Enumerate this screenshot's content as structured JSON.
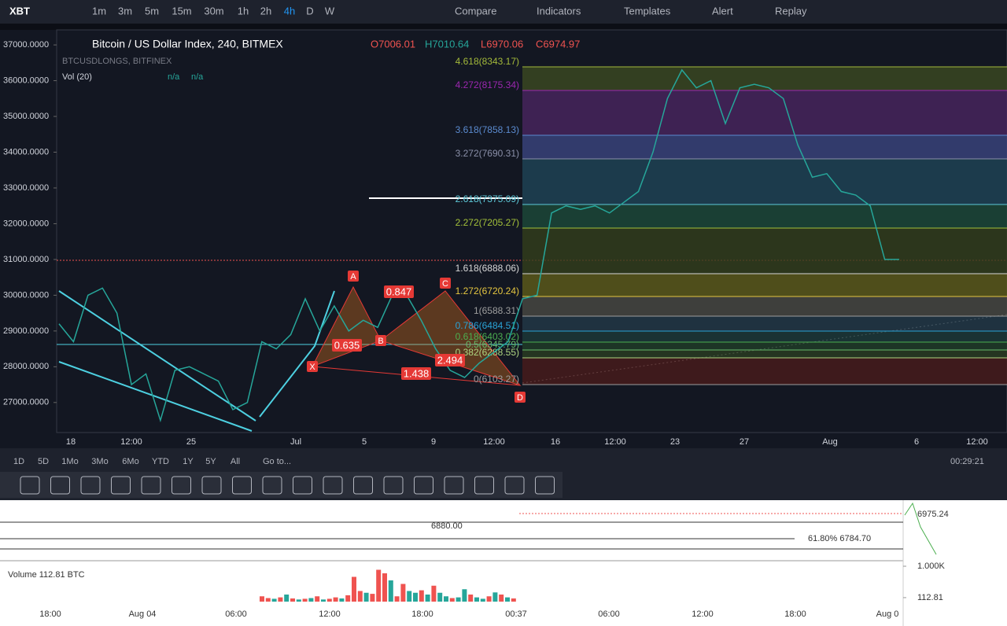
{
  "toolbar": {
    "symbol": "XBT",
    "intervals": [
      "1m",
      "3m",
      "5m",
      "15m",
      "30m",
      "1h",
      "2h",
      "4h",
      "D",
      "W"
    ],
    "buttons": [
      "Compare",
      "Indicators",
      "Templates",
      "Alert",
      "Replay"
    ]
  },
  "legend": {
    "title": "Bitcoin / US Dollar Index, 240, BITMEX",
    "ohlc": [
      "O7006.01",
      "H7010.64",
      "L6970.06",
      "C6974.97"
    ],
    "study1": "BTCUSDLONGS, BITFINEX",
    "study2": "Vol (20)",
    "study2_values": [
      "n/a",
      "n/a"
    ]
  },
  "chart_data": {
    "type": "line",
    "color": "#26a69a",
    "values": [
      29200,
      28700,
      30000,
      30200,
      29500,
      27500,
      27800,
      26500,
      27900,
      28000,
      27800,
      27600,
      26800,
      27000,
      28700,
      28500,
      28900,
      29900,
      29000,
      29700,
      29000,
      29300,
      29100,
      30000,
      30000,
      29300,
      28500,
      27900,
      27700,
      28100,
      28400,
      28700,
      29900,
      30000,
      32300,
      32500,
      32400,
      32500,
      32300,
      32600,
      32900,
      34000,
      35500,
      36300,
      35800,
      36000,
      34800,
      35800,
      35900,
      35800,
      35500,
      34200,
      33300,
      33400,
      32900,
      32800,
      32500,
      31000,
      31000
    ],
    "ylim": [
      26160,
      37420
    ],
    "yticks": [
      {
        "value": 37000,
        "label": "37000.0000"
      },
      {
        "value": 36000,
        "label": "36000.0000"
      },
      {
        "value": 35000,
        "label": "35000.0000"
      },
      {
        "value": 34000,
        "label": "34000.0000"
      },
      {
        "value": 33000,
        "label": "33000.0000"
      },
      {
        "value": 32000,
        "label": "32000.0000"
      },
      {
        "value": 31000,
        "label": "31000.0000"
      },
      {
        "value": 30000,
        "label": "30000.0000"
      },
      {
        "value": 29000,
        "label": "29000.0000"
      },
      {
        "value": 28000,
        "label": "28000.0000"
      },
      {
        "value": 27000,
        "label": "27000.0000"
      }
    ],
    "x_labels": [
      "18",
      "12:00",
      "25",
      "Jul",
      "5",
      "9",
      "12:00",
      "16",
      "12:00",
      "23",
      "27",
      "Aug",
      "6",
      "12:00"
    ]
  },
  "fib_levels": [
    {
      "label": "4.618(8343.17)",
      "color": "#a3b93a",
      "band": "#3c4a22"
    },
    {
      "label": "4.272(8175.34)",
      "color": "#9c27b0",
      "band": "#4a2560"
    },
    {
      "label": "3.618(7858.13)",
      "color": "#5b8bd0",
      "band": "#3b4580"
    },
    {
      "label": "3.272(7690.31)",
      "color": "#8a8fa8",
      "band": "#1f4557"
    },
    {
      "label": "2.618(7375.09)",
      "color": "#5dc8d8",
      "band": "#1d4a3a"
    },
    {
      "label": "2.272(7205.27)",
      "color": "#a3c03a",
      "band": "#333f1c"
    },
    {
      "label": "1.618(6888.06)",
      "color": "#d7d7d7",
      "band": "#5f5c1a"
    },
    {
      "label": "1.272(6720.24)",
      "color": "#e5c640",
      "band": "#4a4a44"
    },
    {
      "label": "1(6588.31)",
      "color": "#9e9e9e",
      "band": "#233a48"
    },
    {
      "label": "0.786(6484.51)",
      "color": "#2aa2d6",
      "band": "#1d3a3a"
    },
    {
      "label": "0.618(6403.02)",
      "color": "#4caf50",
      "band": "#203d28"
    },
    {
      "label": "0.5(6345.79)",
      "color": "#66bb6a",
      "band": "#2a3d22"
    },
    {
      "label": "0.382(6288.55)",
      "color": "#aed581",
      "band": "#4a1c1c"
    },
    {
      "label": "0(6103.27)",
      "color": "#9e9e9e",
      "band": null
    }
  ],
  "pattern": {
    "points": [
      "X",
      "A",
      "B",
      "C",
      "D"
    ],
    "ratios": [
      "0.847",
      "0.635",
      "1.438",
      "2.494"
    ]
  },
  "bottom_bar": {
    "ranges": [
      "1D",
      "5D",
      "1Mo",
      "3Mo",
      "6Mo",
      "YTD",
      "1Y",
      "5Y",
      "All"
    ],
    "goto": "Go to...",
    "clock": "00:29:21"
  },
  "lower_panel": {
    "price_label": "6975.24",
    "fib_text": "61.80%  6784.70",
    "level_text": "6880.00",
    "volume_title": "Volume 112.81 BTC",
    "volume_ylim": [
      0,
      1000
    ],
    "volume_ticks": [
      {
        "value": 1000,
        "label": "1.000K"
      },
      112.81
    ],
    "volume": {
      "values": [
        150,
        100,
        80,
        120,
        200,
        90,
        60,
        80,
        100,
        150,
        60,
        80,
        120,
        90,
        180,
        700,
        300,
        250,
        220,
        900,
        800,
        600,
        150,
        500,
        300,
        250,
        320,
        200,
        450,
        250,
        150,
        100,
        120,
        350,
        200,
        120,
        80,
        150,
        260,
        200,
        120,
        90
      ],
      "colors": [
        "#ef5350",
        "#ef5350",
        "#26a69a",
        "#ef5350",
        "#26a69a",
        "#ef5350",
        "#26a69a",
        "#ef5350",
        "#26a69a",
        "#ef5350",
        "#26a69a",
        "#ef5350",
        "#ef5350",
        "#26a69a",
        "#ef5350",
        "#ef5350",
        "#ef5350",
        "#26a69a",
        "#ef5350",
        "#ef5350",
        "#ef5350",
        "#26a69a",
        "#ef5350",
        "#ef5350",
        "#26a69a",
        "#26a69a",
        "#ef5350",
        "#26a69a",
        "#ef5350",
        "#26a69a",
        "#26a69a",
        "#ef5350",
        "#26a69a",
        "#26a69a",
        "#ef5350",
        "#26a69a",
        "#26a69a",
        "#ef5350",
        "#26a69a",
        "#ef5350",
        "#26a69a",
        "#ef5350"
      ]
    },
    "x_labels": [
      "18:00",
      "Aug 04",
      "06:00",
      "12:00",
      "18:00",
      "00:37",
      "06:00",
      "12:00",
      "18:00",
      "Aug 0"
    ]
  }
}
